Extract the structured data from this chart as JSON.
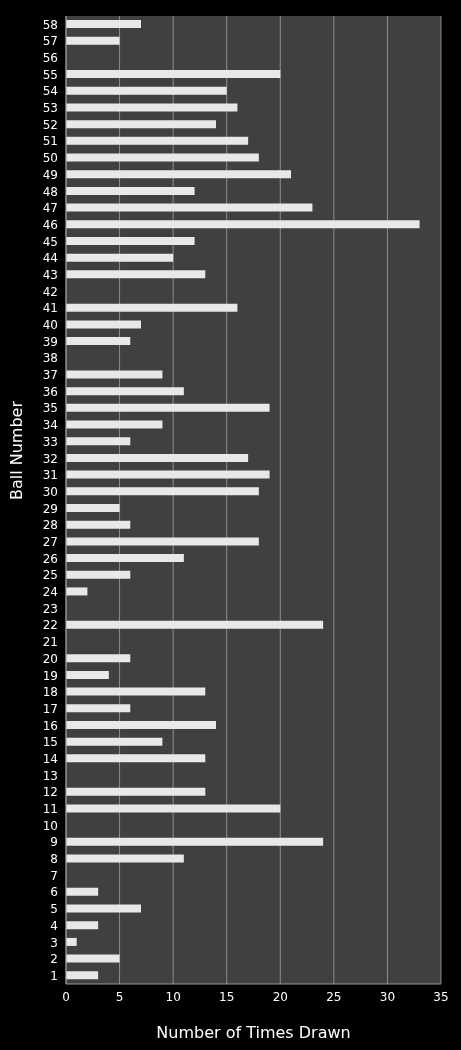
{
  "chart_data": {
    "type": "bar",
    "orientation": "horizontal",
    "xlabel": "Number of Times Drawn",
    "ylabel": "Ball Number",
    "categories": [
      "58",
      "57",
      "56",
      "55",
      "54",
      "53",
      "52",
      "51",
      "50",
      "49",
      "48",
      "47",
      "46",
      "45",
      "44",
      "43",
      "42",
      "41",
      "40",
      "39",
      "38",
      "37",
      "36",
      "35",
      "34",
      "33",
      "32",
      "31",
      "30",
      "29",
      "28",
      "27",
      "26",
      "25",
      "24",
      "23",
      "22",
      "21",
      "20",
      "19",
      "18",
      "17",
      "16",
      "15",
      "14",
      "13",
      "12",
      "11",
      "10",
      "9",
      "8",
      "7",
      "6",
      "5",
      "4",
      "3",
      "2",
      "1"
    ],
    "values": [
      7,
      5,
      0,
      20,
      15,
      16,
      14,
      17,
      18,
      21,
      12,
      23,
      33,
      12,
      10,
      13,
      0,
      16,
      7,
      6,
      0,
      9,
      11,
      19,
      9,
      6,
      17,
      19,
      18,
      5,
      6,
      18,
      11,
      6,
      2,
      0,
      24,
      0,
      6,
      4,
      13,
      6,
      14,
      9,
      13,
      0,
      13,
      20,
      0,
      24,
      11,
      0,
      3,
      7,
      3,
      1,
      5,
      3
    ],
    "color": "#e8e8e8",
    "xlim": [
      0,
      35
    ],
    "xticks": [
      0,
      5,
      10,
      15,
      20,
      25,
      30,
      35
    ],
    "grid": "x"
  }
}
